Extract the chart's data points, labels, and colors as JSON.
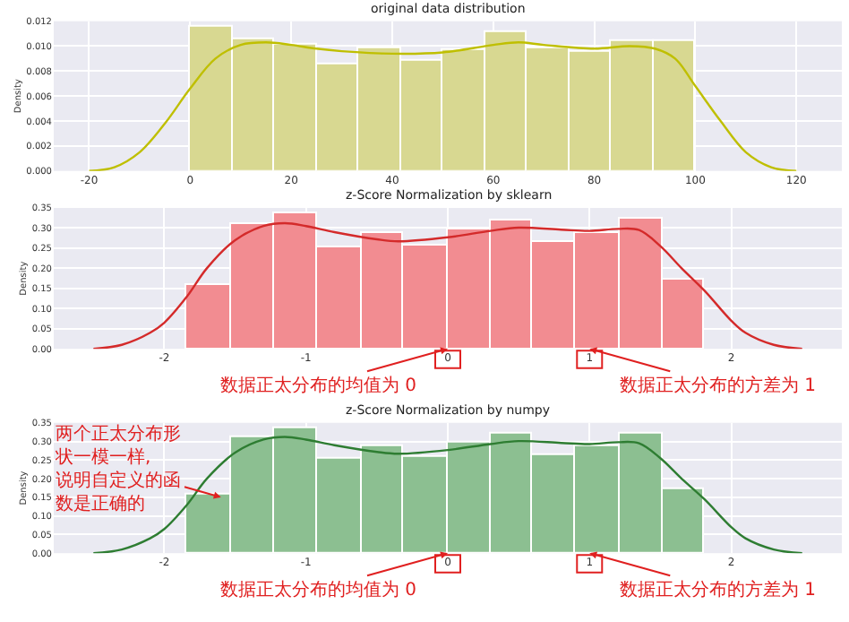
{
  "chart_data": [
    {
      "type": "histogram",
      "title": "original data distribution",
      "ylabel": "Density",
      "bins": [
        0,
        8.33,
        16.67,
        25,
        33.33,
        41.67,
        50,
        58.33,
        66.67,
        75,
        83.33,
        91.67,
        100
      ],
      "series": [
        {
          "type": "histogram",
          "color": "#d8d891",
          "values": [
            0.0115,
            0.0106,
            0.0102,
            0.0086,
            0.0098,
            0.0088,
            0.0097,
            0.0111,
            0.0098,
            0.0095,
            0.0104,
            0.0104
          ]
        },
        {
          "type": "line",
          "color": "#bfbf00",
          "x": [
            -20,
            -15,
            -10,
            -5,
            0,
            5,
            10,
            15,
            20,
            25,
            30,
            40,
            50,
            60,
            65,
            70,
            80,
            87,
            92,
            96,
            100,
            105,
            110,
            115,
            120
          ],
          "values": [
            0,
            0.0003,
            0.0015,
            0.0038,
            0.0066,
            0.009,
            0.0101,
            0.0103,
            0.0101,
            0.0098,
            0.0096,
            0.0094,
            0.0095,
            0.0101,
            0.0103,
            0.0101,
            0.0098,
            0.01,
            0.0098,
            0.009,
            0.0068,
            0.004,
            0.0015,
            0.0003,
            0
          ]
        }
      ],
      "xlim": [
        -27,
        129
      ],
      "xticks": [
        -20,
        0,
        20,
        40,
        60,
        80,
        100,
        120
      ],
      "ylim": [
        0,
        0.012
      ],
      "yticks": [
        {
          "value": 0,
          "label": "0.000"
        },
        {
          "value": 0.002,
          "label": "0.002"
        },
        {
          "value": 0.004,
          "label": "0.004"
        },
        {
          "value": 0.006,
          "label": "0.006"
        },
        {
          "value": 0.008,
          "label": "0.008"
        },
        {
          "value": 0.01,
          "label": "0.010"
        },
        {
          "value": 0.012,
          "label": "0.012"
        }
      ],
      "grid": true
    },
    {
      "type": "histogram",
      "title": "z-Score Normalization by sklearn",
      "ylabel": "Density",
      "bins": [
        -1.84,
        -1.53,
        -1.22,
        -0.92,
        -0.61,
        -0.31,
        0,
        0.3,
        0.6,
        0.9,
        1.21,
        1.51,
        1.81
      ],
      "series": [
        {
          "type": "histogram",
          "color": "#f28c91",
          "values": [
            0.157,
            0.312,
            0.335,
            0.253,
            0.288,
            0.257,
            0.295,
            0.32,
            0.265,
            0.289,
            0.322,
            0.17
          ]
        },
        {
          "type": "line",
          "color": "#d42a2a",
          "x": [
            -2.5,
            -2.3,
            -2.1,
            -2.0,
            -1.84,
            -1.7,
            -1.5,
            -1.3,
            -1.15,
            -1.0,
            -0.8,
            -0.5,
            -0.35,
            0,
            0.3,
            0.5,
            0.8,
            1.0,
            1.2,
            1.35,
            1.5,
            1.65,
            1.81,
            2.0,
            2.1,
            2.3,
            2.5
          ],
          "values": [
            0,
            0.01,
            0.04,
            0.065,
            0.13,
            0.2,
            0.27,
            0.305,
            0.312,
            0.305,
            0.29,
            0.272,
            0.267,
            0.277,
            0.293,
            0.301,
            0.296,
            0.293,
            0.298,
            0.295,
            0.255,
            0.2,
            0.145,
            0.07,
            0.04,
            0.01,
            0
          ]
        }
      ],
      "xlim": [
        -2.78,
        2.78
      ],
      "xticks": [
        -2,
        -1,
        0,
        1,
        2
      ],
      "ylim": [
        0,
        0.35
      ],
      "yticks": [
        {
          "value": 0,
          "label": "0.00"
        },
        {
          "value": 0.05,
          "label": "0.05"
        },
        {
          "value": 0.1,
          "label": "0.10"
        },
        {
          "value": 0.15,
          "label": "0.15"
        },
        {
          "value": 0.2,
          "label": "0.20"
        },
        {
          "value": 0.25,
          "label": "0.25"
        },
        {
          "value": 0.3,
          "label": "0.30"
        },
        {
          "value": 0.35,
          "label": "0.35"
        }
      ],
      "grid": true,
      "annotations": [
        {
          "text": "数据正太分布的均值为 0",
          "x": 0,
          "y": 0
        },
        {
          "text": "数据正太分布的方差为 1",
          "x": 1,
          "y": 0
        }
      ]
    },
    {
      "type": "histogram",
      "title": "z-Score Normalization by numpy",
      "ylabel": "Density",
      "bins": [
        -1.84,
        -1.53,
        -1.22,
        -0.92,
        -0.61,
        -0.31,
        0,
        0.3,
        0.6,
        0.9,
        1.21,
        1.51,
        1.81
      ],
      "series": [
        {
          "type": "histogram",
          "color": "#8cbf91",
          "values": [
            0.157,
            0.312,
            0.335,
            0.253,
            0.288,
            0.257,
            0.295,
            0.32,
            0.265,
            0.289,
            0.322,
            0.17
          ]
        },
        {
          "type": "line",
          "color": "#2e7d32",
          "x": [
            -2.5,
            -2.3,
            -2.1,
            -2.0,
            -1.84,
            -1.7,
            -1.5,
            -1.3,
            -1.15,
            -1.0,
            -0.8,
            -0.5,
            -0.35,
            0,
            0.3,
            0.5,
            0.8,
            1.0,
            1.2,
            1.35,
            1.5,
            1.65,
            1.81,
            2.0,
            2.1,
            2.3,
            2.5
          ],
          "values": [
            0,
            0.01,
            0.04,
            0.065,
            0.13,
            0.2,
            0.27,
            0.305,
            0.312,
            0.305,
            0.29,
            0.272,
            0.267,
            0.277,
            0.293,
            0.301,
            0.296,
            0.293,
            0.298,
            0.295,
            0.255,
            0.2,
            0.145,
            0.07,
            0.04,
            0.01,
            0
          ]
        }
      ],
      "xlim": [
        -2.78,
        2.78
      ],
      "xticks": [
        -2,
        -1,
        0,
        1,
        2
      ],
      "ylim": [
        0,
        0.35
      ],
      "yticks": [
        {
          "value": 0,
          "label": "0.00"
        },
        {
          "value": 0.05,
          "label": "0.05"
        },
        {
          "value": 0.1,
          "label": "0.10"
        },
        {
          "value": 0.15,
          "label": "0.15"
        },
        {
          "value": 0.2,
          "label": "0.20"
        },
        {
          "value": 0.25,
          "label": "0.25"
        },
        {
          "value": 0.3,
          "label": "0.30"
        },
        {
          "value": 0.35,
          "label": "0.35"
        }
      ],
      "grid": true,
      "annotations": [
        {
          "text": "数据正太分布的均值为 0",
          "x": 0,
          "y": 0
        },
        {
          "text": "数据正太分布的方差为 1",
          "x": 1,
          "y": 0
        },
        {
          "text": "两个正太分布形状一模一样,\n说明自定义的函数是正确的",
          "x": -1.6,
          "y": 0.15
        }
      ]
    }
  ]
}
